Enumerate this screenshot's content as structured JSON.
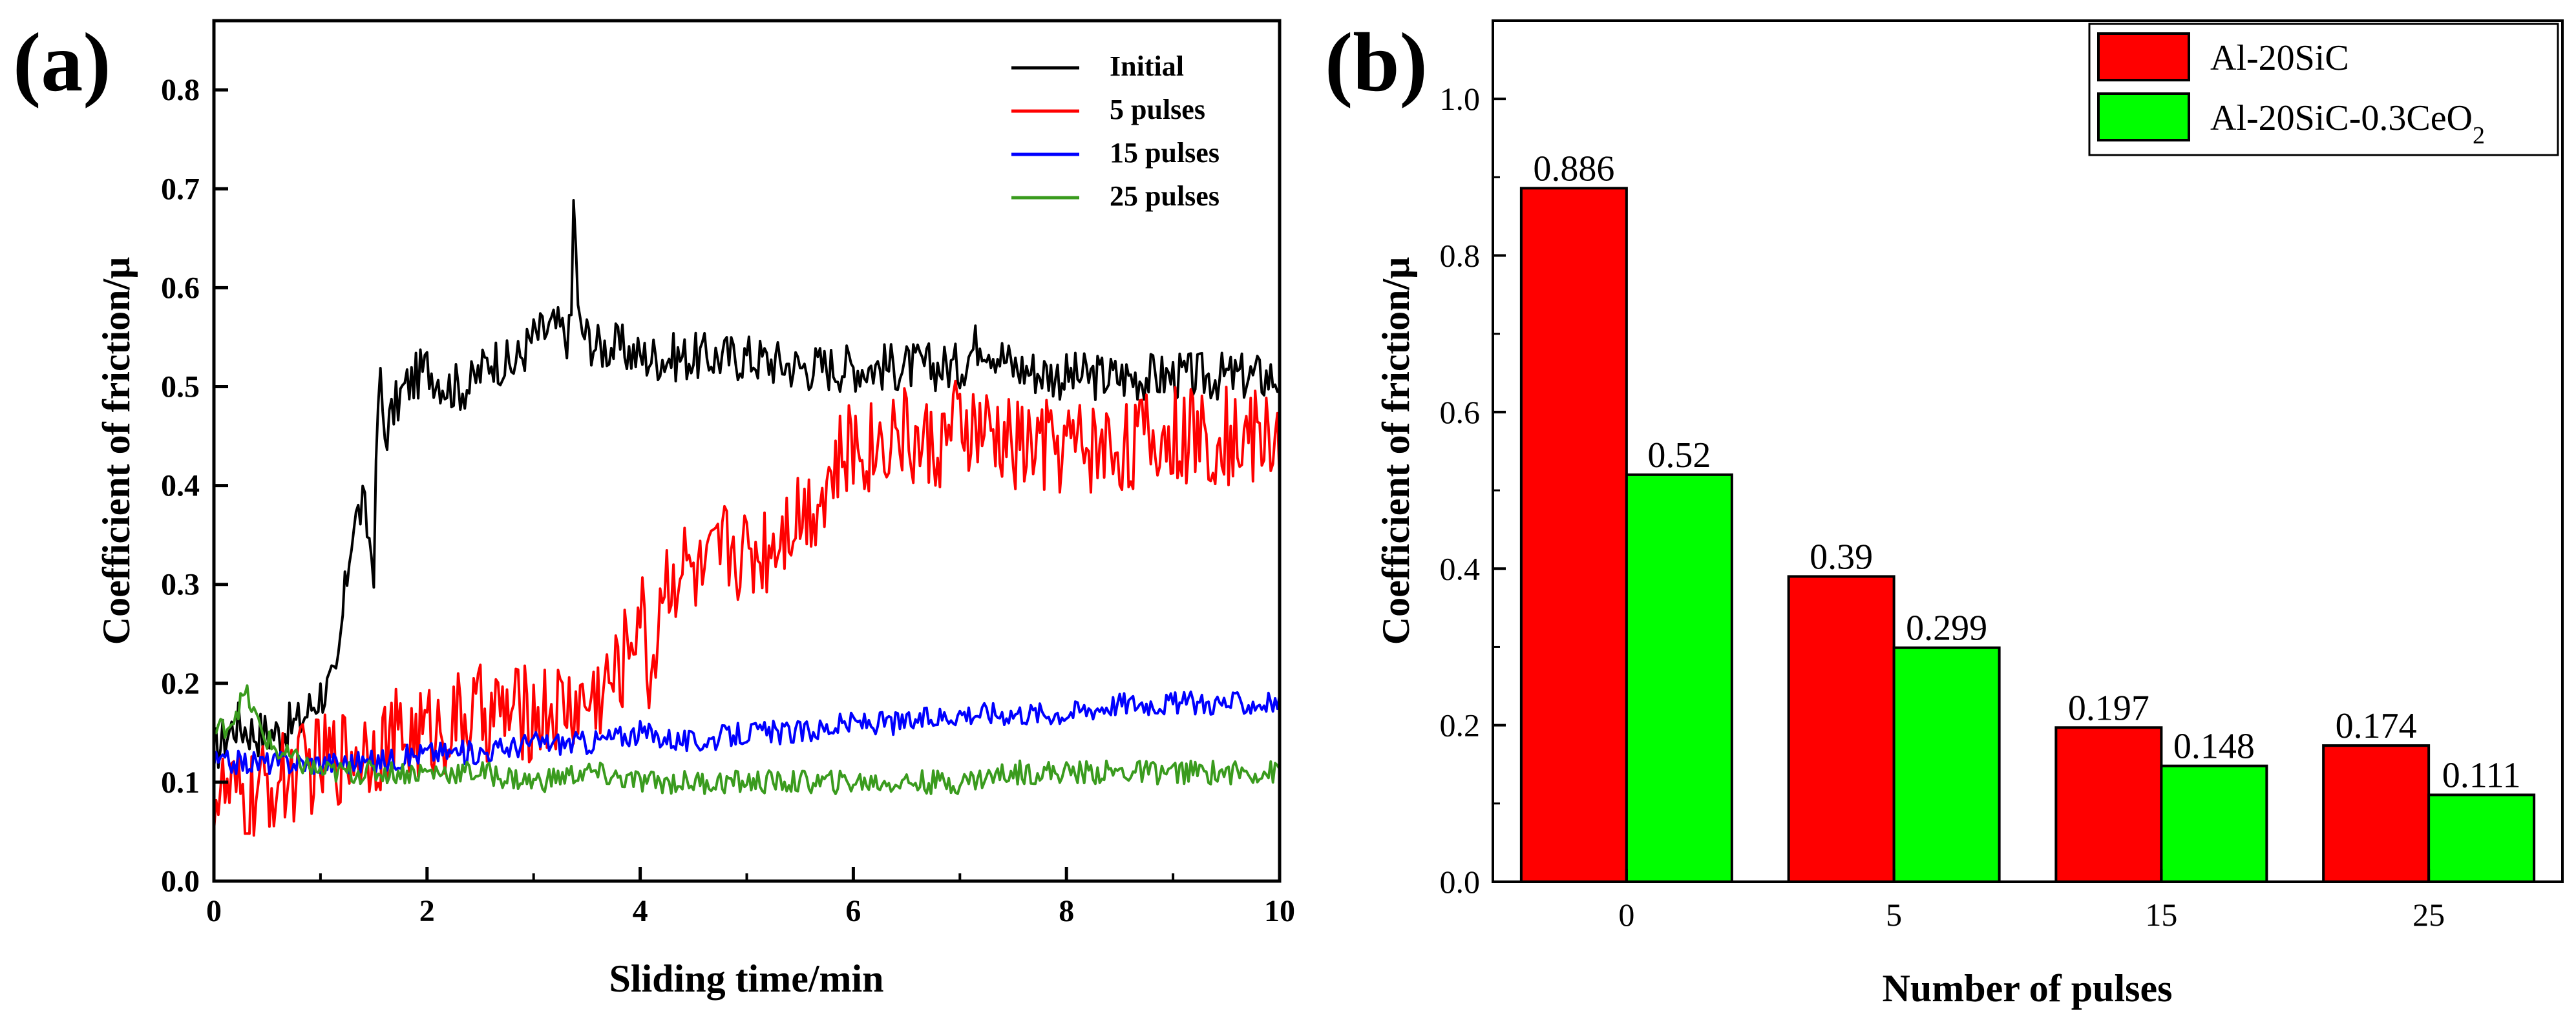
{
  "chart_data": [
    {
      "panel_label": "(a)",
      "type": "line",
      "title": "",
      "xlabel": "Sliding time/min",
      "ylabel": "Coefficient of friction/μ",
      "xlim": [
        0,
        10
      ],
      "ylim": [
        0,
        0.87
      ],
      "xticks": [
        "0",
        "2",
        "4",
        "6",
        "8",
        "10"
      ],
      "yticks": [
        "0.0",
        "0.1",
        "0.2",
        "0.3",
        "0.4",
        "0.5",
        "0.6",
        "0.7",
        "0.8"
      ],
      "legend_position": "top-right",
      "series": [
        {
          "name": "Initial",
          "color": "#000000",
          "x": [
            0,
            0.2,
            0.4,
            0.6,
            0.8,
            1.0,
            1.15,
            1.2,
            1.3,
            1.4,
            1.5,
            1.55,
            1.6,
            1.7,
            1.8,
            2.0,
            2.2,
            2.4,
            2.6,
            2.8,
            3.0,
            3.2,
            3.35,
            3.38,
            3.42,
            3.6,
            3.8,
            4.0,
            4.5,
            5.0,
            5.5,
            6.0,
            6.5,
            7.0,
            7.2,
            7.5,
            8.0,
            8.5,
            9.0,
            9.5,
            10.0
          ],
          "values": [
            0.13,
            0.16,
            0.15,
            0.15,
            0.16,
            0.19,
            0.2,
            0.26,
            0.36,
            0.38,
            0.32,
            0.52,
            0.45,
            0.48,
            0.5,
            0.52,
            0.5,
            0.5,
            0.53,
            0.52,
            0.55,
            0.56,
            0.55,
            0.71,
            0.56,
            0.54,
            0.54,
            0.53,
            0.53,
            0.53,
            0.52,
            0.52,
            0.52,
            0.52,
            0.55,
            0.52,
            0.51,
            0.51,
            0.51,
            0.51,
            0.51
          ]
        },
        {
          "name": "5 pulses",
          "color": "#ff0000",
          "x": [
            0,
            0.3,
            0.6,
            1.0,
            1.5,
            2.0,
            2.5,
            3.0,
            3.5,
            3.8,
            4.0,
            4.1,
            4.2,
            4.4,
            4.6,
            4.8,
            5.0,
            5.2,
            5.4,
            5.6,
            5.8,
            6.0,
            6.2,
            6.4,
            6.6,
            6.8,
            7.0,
            7.5,
            8.0,
            8.5,
            9.0,
            9.5,
            10.0
          ],
          "values": [
            0.09,
            0.08,
            0.1,
            0.12,
            0.14,
            0.15,
            0.17,
            0.17,
            0.18,
            0.21,
            0.28,
            0.2,
            0.3,
            0.32,
            0.3,
            0.34,
            0.33,
            0.34,
            0.37,
            0.38,
            0.41,
            0.44,
            0.44,
            0.46,
            0.44,
            0.44,
            0.46,
            0.44,
            0.44,
            0.44,
            0.45,
            0.45,
            0.45
          ]
        },
        {
          "name": "15 pulses",
          "color": "#0000ff",
          "x": [
            0,
            0.5,
            1.0,
            1.5,
            2.0,
            2.5,
            3.0,
            3.5,
            4.0,
            4.5,
            5.0,
            5.5,
            6.0,
            6.5,
            7.0,
            7.5,
            8.0,
            8.5,
            9.0,
            9.5,
            10.0
          ],
          "values": [
            0.12,
            0.12,
            0.12,
            0.12,
            0.13,
            0.13,
            0.14,
            0.14,
            0.15,
            0.14,
            0.15,
            0.15,
            0.16,
            0.16,
            0.17,
            0.17,
            0.17,
            0.18,
            0.18,
            0.18,
            0.18
          ]
        },
        {
          "name": "25 pulses",
          "color": "#3a9b1e",
          "x": [
            0,
            0.15,
            0.3,
            0.45,
            0.6,
            0.8,
            1.0,
            1.5,
            2.0,
            2.5,
            3.0,
            3.5,
            4.0,
            4.5,
            5.0,
            5.5,
            6.0,
            6.5,
            7.0,
            7.5,
            8.0,
            8.5,
            9.0,
            9.5,
            10.0
          ],
          "values": [
            0.15,
            0.16,
            0.19,
            0.15,
            0.13,
            0.12,
            0.11,
            0.11,
            0.11,
            0.11,
            0.1,
            0.11,
            0.1,
            0.1,
            0.1,
            0.1,
            0.1,
            0.1,
            0.1,
            0.11,
            0.11,
            0.11,
            0.11,
            0.11,
            0.11
          ]
        }
      ]
    },
    {
      "panel_label": "(b)",
      "type": "bar",
      "title": "",
      "xlabel": "Number of pulses",
      "ylabel": "Coefficient of friction/μ",
      "ylim": [
        0,
        1.1
      ],
      "yticks": [
        "0.0",
        "0.2",
        "0.4",
        "0.6",
        "0.8",
        "1.0"
      ],
      "categories": [
        "0",
        "5",
        "15",
        "25"
      ],
      "legend_position": "top-right",
      "series": [
        {
          "name": "Al-20SiC",
          "name_main": "Al-20SiC",
          "name_sub": "",
          "name_tail": "",
          "color": "#ff0000",
          "values": [
            0.886,
            0.39,
            0.197,
            0.174
          ],
          "labels": [
            "0.886",
            "0.39",
            "0.197",
            "0.174"
          ]
        },
        {
          "name": "Al-20SiC-0.3CeO2",
          "name_main": "Al-20SiC-0.3CeO",
          "name_sub": "2",
          "name_tail": "",
          "color": "#00ff00",
          "values": [
            0.52,
            0.299,
            0.148,
            0.111
          ],
          "labels": [
            "0.52",
            "0.299",
            "0.148",
            "0.111"
          ]
        }
      ]
    }
  ]
}
